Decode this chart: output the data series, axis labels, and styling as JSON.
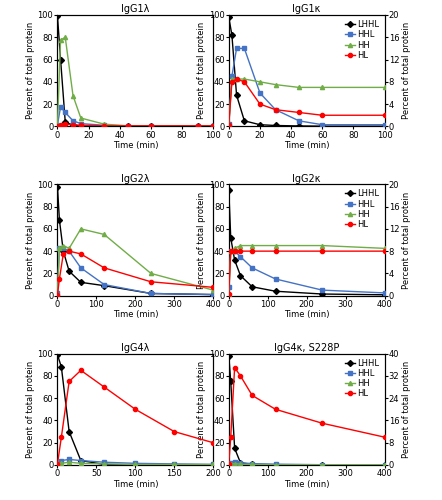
{
  "panels": [
    {
      "title": "IgG1λ",
      "xlim": [
        0,
        100
      ],
      "xticks": [
        0,
        20,
        40,
        60,
        80,
        100
      ],
      "ylim_left": [
        0,
        100
      ],
      "ylim_right": [
        0,
        20
      ],
      "yticks_left": [
        0,
        20,
        40,
        60,
        80,
        100
      ],
      "yticks_right": [
        0,
        4,
        8,
        12,
        16,
        20
      ],
      "show_legend": false,
      "LHHL": {
        "x": [
          0,
          2,
          5,
          10,
          15,
          30,
          45,
          60,
          90,
          100
        ],
        "y": [
          99,
          60,
          4,
          1,
          0.5,
          0.3,
          0.2,
          0.1,
          0.1,
          0.1
        ]
      },
      "HHL": {
        "x": [
          0,
          2,
          5,
          10,
          15,
          30,
          45,
          60,
          90,
          100
        ],
        "y": [
          0.3,
          3.5,
          2.5,
          1.0,
          0.5,
          0.2,
          0.1,
          0.1,
          0.1,
          0.1
        ]
      },
      "HH": {
        "x": [
          0,
          2,
          5,
          10,
          15,
          30,
          45,
          60,
          90,
          100
        ],
        "y": [
          0.2,
          15.5,
          16.0,
          5.5,
          1.5,
          0.4,
          0.1,
          0.1,
          0.1,
          0.1
        ]
      },
      "HL": {
        "x": [
          0,
          2,
          5,
          10,
          15,
          30,
          45,
          60,
          90,
          100
        ],
        "y": [
          0.1,
          0.3,
          0.4,
          0.3,
          0.2,
          0.1,
          0.1,
          0.1,
          0.1,
          0.1
        ]
      }
    },
    {
      "title": "IgG1κ",
      "xlim": [
        0,
        100
      ],
      "xticks": [
        0,
        20,
        40,
        60,
        80,
        100
      ],
      "ylim_left": [
        0,
        100
      ],
      "ylim_right": [
        0,
        20
      ],
      "yticks_left": [
        0,
        20,
        40,
        60,
        80,
        100
      ],
      "yticks_right": [
        0,
        4,
        8,
        12,
        16,
        20
      ],
      "show_legend": true,
      "LHHL": {
        "x": [
          0,
          2,
          5,
          10,
          20,
          30,
          45,
          60,
          100
        ],
        "y": [
          98,
          82,
          28,
          5,
          1.5,
          0.8,
          0.4,
          0.2,
          0.2
        ]
      },
      "HHL": {
        "x": [
          0,
          2,
          5,
          10,
          20,
          30,
          45,
          60,
          100
        ],
        "y": [
          0.5,
          9.0,
          14.0,
          14.0,
          6.0,
          3.0,
          1.0,
          0.3,
          0.3
        ]
      },
      "HH": {
        "x": [
          0,
          2,
          5,
          10,
          20,
          30,
          45,
          60,
          100
        ],
        "y": [
          0.3,
          8.5,
          8.5,
          8.5,
          8.0,
          7.5,
          7.0,
          7.0,
          7.0
        ]
      },
      "HL": {
        "x": [
          0,
          2,
          5,
          10,
          20,
          30,
          45,
          60,
          100
        ],
        "y": [
          0.3,
          8.0,
          8.5,
          8.0,
          4.0,
          3.0,
          2.5,
          2.0,
          2.0
        ]
      }
    },
    {
      "title": "IgG2λ",
      "xlim": [
        0,
        400
      ],
      "xticks": [
        0,
        100,
        200,
        300,
        400
      ],
      "ylim_left": [
        0,
        100
      ],
      "ylim_right": [
        0,
        20
      ],
      "yticks_left": [
        0,
        20,
        40,
        60,
        80,
        100
      ],
      "yticks_right": [
        0,
        4,
        8,
        12,
        16,
        20
      ],
      "show_legend": false,
      "LHHL": {
        "x": [
          0,
          5,
          15,
          30,
          60,
          120,
          240,
          400
        ],
        "y": [
          98,
          68,
          40,
          22,
          12,
          9,
          2,
          1
        ]
      },
      "HHL": {
        "x": [
          0,
          5,
          15,
          30,
          60,
          120,
          240,
          400
        ],
        "y": [
          0.5,
          8.5,
          8.5,
          8.0,
          5.0,
          2.0,
          0.4,
          0.2
        ]
      },
      "HH": {
        "x": [
          0,
          5,
          15,
          30,
          60,
          120,
          240,
          400
        ],
        "y": [
          0.3,
          8.5,
          9.0,
          8.5,
          12.0,
          11.0,
          4.0,
          1.0
        ]
      },
      "HL": {
        "x": [
          0,
          5,
          15,
          30,
          60,
          120,
          240,
          400
        ],
        "y": [
          0.2,
          3.0,
          7.5,
          8.0,
          7.5,
          5.0,
          2.5,
          1.5
        ]
      }
    },
    {
      "title": "IgG2κ",
      "xlim": [
        0,
        400
      ],
      "xticks": [
        0,
        100,
        200,
        300,
        400
      ],
      "ylim_left": [
        0,
        100
      ],
      "ylim_right": [
        0,
        20
      ],
      "yticks_left": [
        0,
        20,
        40,
        60,
        80,
        100
      ],
      "yticks_right": [
        0,
        4,
        8,
        12,
        16,
        20
      ],
      "show_legend": true,
      "LHHL": {
        "x": [
          0,
          5,
          15,
          30,
          60,
          120,
          240,
          400
        ],
        "y": [
          95,
          52,
          32,
          18,
          8,
          4,
          1.5,
          0.8
        ]
      },
      "HHL": {
        "x": [
          0,
          5,
          15,
          30,
          60,
          120,
          240,
          400
        ],
        "y": [
          1.5,
          8.0,
          8.0,
          7.0,
          5.0,
          3.0,
          1.0,
          0.5
        ]
      },
      "HH": {
        "x": [
          0,
          5,
          15,
          30,
          60,
          120,
          240,
          400
        ],
        "y": [
          0.3,
          8.0,
          8.5,
          9.0,
          9.0,
          9.0,
          9.0,
          8.5
        ]
      },
      "HL": {
        "x": [
          0,
          5,
          15,
          30,
          60,
          120,
          240,
          400
        ],
        "y": [
          0.3,
          8.0,
          8.0,
          8.0,
          8.0,
          8.0,
          8.0,
          8.0
        ]
      }
    },
    {
      "title": "IgG4λ",
      "xlim": [
        0,
        200
      ],
      "xticks": [
        0,
        50,
        100,
        150,
        200
      ],
      "ylim_left": [
        0,
        100
      ],
      "ylim_right": [
        0,
        20
      ],
      "yticks_left": [
        0,
        20,
        40,
        60,
        80,
        100
      ],
      "yticks_right": [
        0,
        4,
        8,
        12,
        16,
        20
      ],
      "show_legend": false,
      "LHHL": {
        "x": [
          0,
          5,
          15,
          30,
          60,
          100,
          150,
          200
        ],
        "y": [
          99,
          88,
          30,
          4,
          0.5,
          0.2,
          0.1,
          0.1
        ]
      },
      "HHL": {
        "x": [
          0,
          5,
          15,
          30,
          60,
          100,
          150,
          200
        ],
        "y": [
          0.2,
          0.8,
          1.0,
          0.8,
          0.5,
          0.3,
          0.2,
          0.1
        ]
      },
      "HH": {
        "x": [
          0,
          5,
          15,
          30,
          60,
          100,
          150,
          200
        ],
        "y": [
          0.1,
          0.3,
          0.5,
          0.3,
          0.2,
          0.1,
          0.1,
          0.1
        ]
      },
      "HL": {
        "x": [
          0,
          5,
          15,
          30,
          60,
          100,
          150,
          200
        ],
        "y": [
          0.2,
          5.0,
          15.0,
          17.0,
          14.0,
          10.0,
          6.0,
          4.0
        ]
      }
    },
    {
      "title": "IgG4κ, S228P",
      "xlim": [
        0,
        400
      ],
      "xticks": [
        0,
        100,
        200,
        300,
        400
      ],
      "ylim_left": [
        0,
        100
      ],
      "ylim_right": [
        0,
        40
      ],
      "yticks_left": [
        0,
        20,
        40,
        60,
        80,
        100
      ],
      "yticks_right": [
        0,
        8,
        16,
        24,
        32,
        40
      ],
      "show_legend": true,
      "LHHL": {
        "x": [
          0,
          5,
          15,
          30,
          60,
          120,
          240,
          400
        ],
        "y": [
          98,
          75,
          15,
          2,
          0.5,
          0.2,
          0.1,
          0.1
        ]
      },
      "HHL": {
        "x": [
          0,
          5,
          15,
          30,
          60,
          120,
          240,
          400
        ],
        "y": [
          0.2,
          0.8,
          1.0,
          0.8,
          0.5,
          0.3,
          0.1,
          0.1
        ]
      },
      "HH": {
        "x": [
          0,
          5,
          15,
          30,
          60,
          120,
          240,
          400
        ],
        "y": [
          0.1,
          0.3,
          0.5,
          0.3,
          0.2,
          0.1,
          0.1,
          0.1
        ]
      },
      "HL": {
        "x": [
          0,
          5,
          15,
          30,
          60,
          120,
          240,
          400
        ],
        "y": [
          0.5,
          10.0,
          35.0,
          32.0,
          25.0,
          20.0,
          15.0,
          10.0
        ]
      }
    }
  ],
  "colors": {
    "LHHL": "#000000",
    "HHL": "#4472c4",
    "HH": "#70ad47",
    "HL": "#ff0000"
  },
  "markers": {
    "LHHL": "D",
    "HHL": "s",
    "HH": "^",
    "HL": "o"
  },
  "series": [
    "LHHL",
    "HHL",
    "HH",
    "HL"
  ],
  "ylabel": "Percent of total protein",
  "xlabel": "Time (min)",
  "markersize": 3,
  "linewidth": 1.0,
  "tick_fontsize": 6,
  "label_fontsize": 6,
  "title_fontsize": 7,
  "legend_fontsize": 6
}
